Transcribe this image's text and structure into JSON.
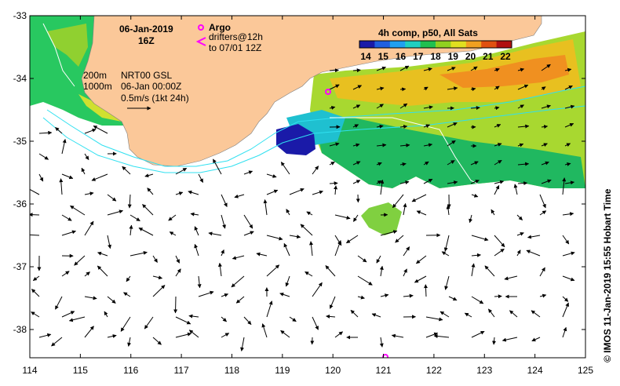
{
  "title": {
    "date": "06-Jan-2019",
    "time": "16Z"
  },
  "argo": {
    "label": "Argo",
    "drifters_line1": "drifters@12h",
    "drifters_line2": "to 07/01 12Z",
    "color": "#ff00ff"
  },
  "depth_labels": [
    "200m",
    "1000m"
  ],
  "current_info": {
    "line1": "NRT00 GSL",
    "line2": "06-Jan 00:00Z",
    "line3": "0.5m/s (1kt 24h)"
  },
  "colorbar": {
    "title": "4h comp, p50, All Sats",
    "ticks": [
      "14",
      "15",
      "16",
      "17",
      "18",
      "19",
      "20",
      "21",
      "22"
    ],
    "colors": [
      "#1a1aa8",
      "#1f5fe0",
      "#1fa0f0",
      "#1fd0c0",
      "#20c050",
      "#90d020",
      "#e0e020",
      "#f0a020",
      "#e05010",
      "#b01010"
    ]
  },
  "axes": {
    "lon_ticks": [
      "114",
      "115",
      "116",
      "117",
      "118",
      "119",
      "120",
      "121",
      "122",
      "123",
      "124",
      "125"
    ],
    "lat_ticks": [
      "-33",
      "-34",
      "-35",
      "-36",
      "-37",
      "-38"
    ]
  },
  "credit": "© IMOS 11-Jan-2019 15:55 Hobart Time",
  "colors": {
    "land": "#fbc899",
    "sea": "#ffffff",
    "isobath": "#30e0f0",
    "vector": "#000000"
  }
}
